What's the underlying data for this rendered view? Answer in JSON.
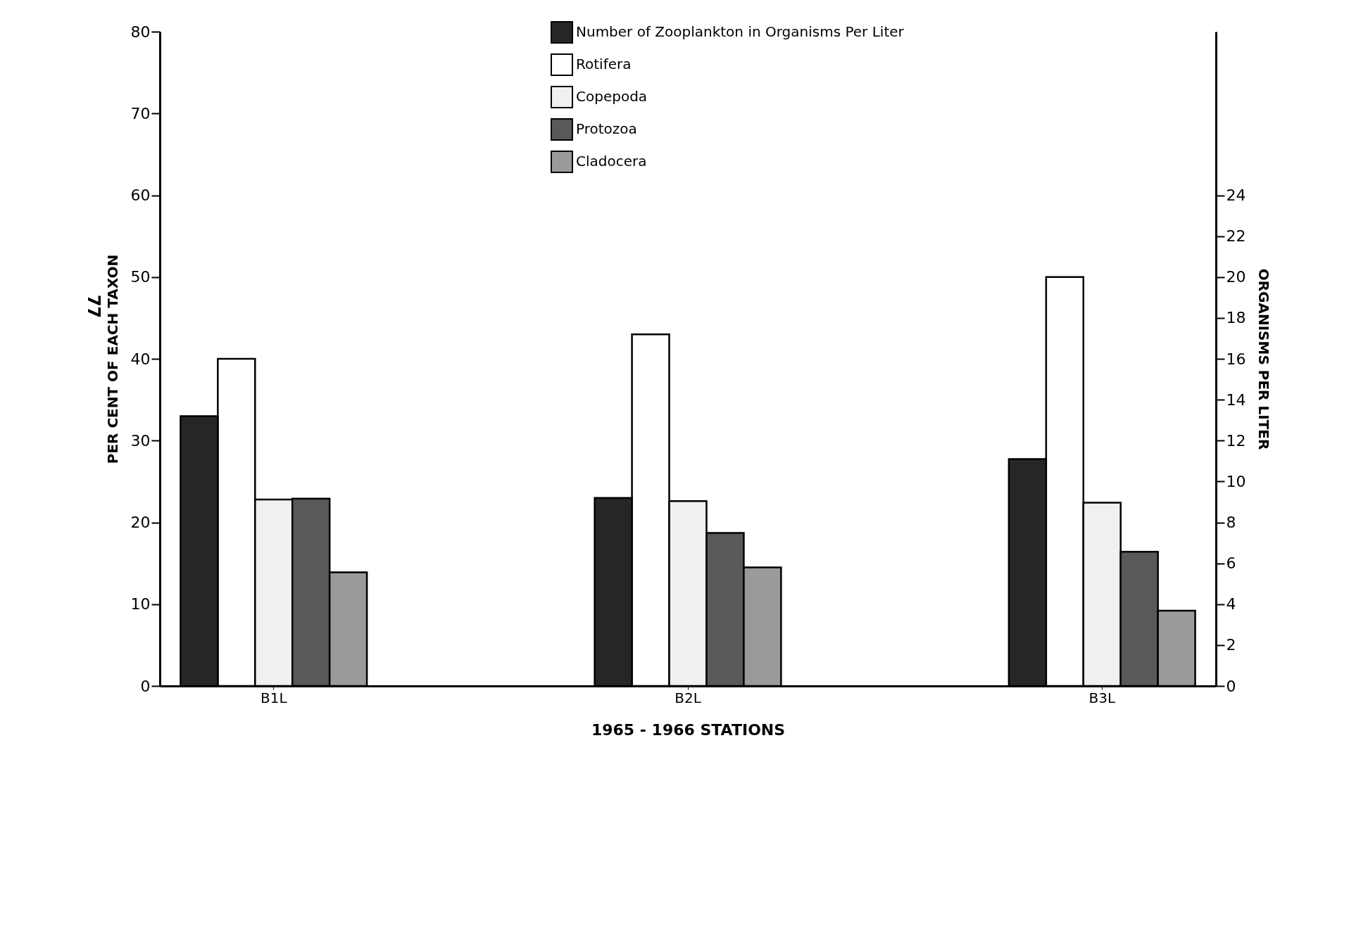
{
  "chart_data": {
    "type": "bar",
    "xlabel": "1965 - 1966 STATIONS",
    "ylabel": "PER CENT OF EACH TAXON",
    "y2label": "ORGANISMS PER LITER",
    "categories": [
      "B1L",
      "B2L",
      "B3L"
    ],
    "series": [
      {
        "name": "Number of Zooplankton in Organisms Per Liter",
        "color": "#262626",
        "axis": "y2",
        "values": [
          13.2,
          9.2,
          11.1
        ]
      },
      {
        "name": "Rotifera",
        "color": "#ffffff",
        "values": [
          40,
          43,
          50
        ]
      },
      {
        "name": "Copepoda",
        "color": "#f0f0f0",
        "values": [
          22.8,
          22.6,
          22.4
        ]
      },
      {
        "name": "Protozoa",
        "color": "#595959",
        "values": [
          22.9,
          18.7,
          16.4
        ]
      },
      {
        "name": "Cladocera",
        "color": "#9a9a9a",
        "values": [
          13.9,
          14.5,
          9.2
        ]
      }
    ],
    "ylim": [
      0,
      80
    ],
    "yticks": [
      0,
      10,
      20,
      30,
      40,
      50,
      60,
      70,
      80
    ],
    "y2lim": [
      0,
      32
    ],
    "y2ticks": [
      0,
      2,
      4,
      6,
      8,
      10,
      12,
      14,
      16,
      18,
      20,
      22,
      24
    ],
    "grid": false,
    "legend": "top",
    "annotations": [
      "77"
    ]
  }
}
